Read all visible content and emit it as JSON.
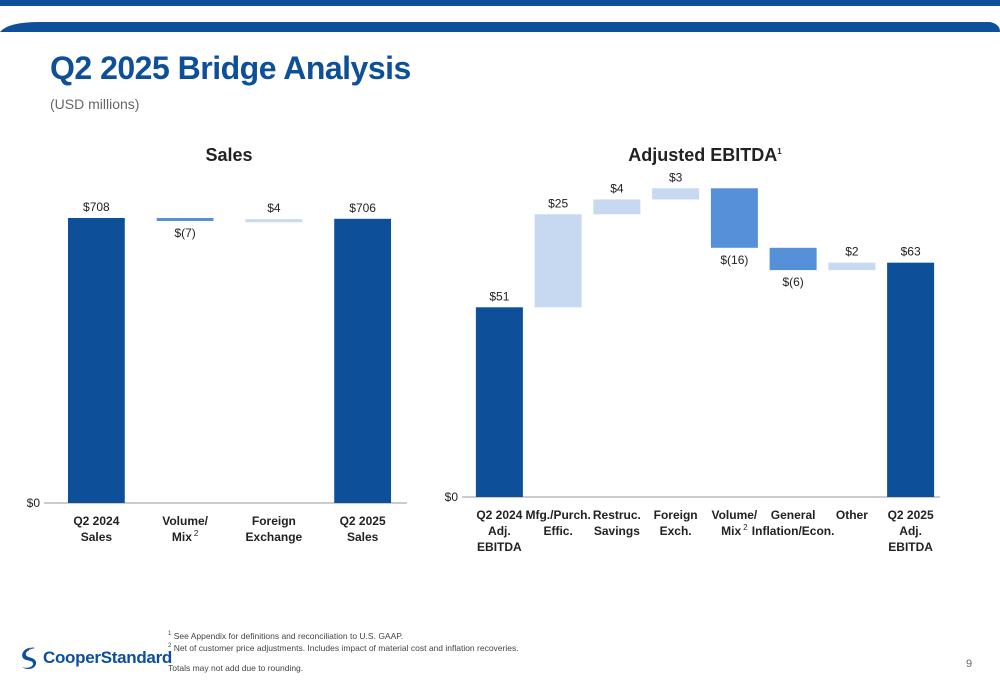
{
  "title": "Q2 2025 Bridge Analysis",
  "subtitle": "(USD millions)",
  "colors": {
    "dark_blue": "#0d4f99",
    "mid_blue": "#5590d8",
    "light_blue": "#c6d9f1",
    "title_blue": "#0d4f99"
  },
  "chart_data": [
    {
      "type": "bar",
      "subtype": "waterfall",
      "title": "Sales",
      "categories": [
        "Q2 2024 Sales",
        "Volume/ Mix 2",
        "Foreign Exchange",
        "Q2 2025 Sales"
      ],
      "tick_lines": [
        [
          "Q2 2024",
          "Sales"
        ],
        [
          "Volume/",
          "Mix"
        ],
        [
          "Foreign",
          "Exchange"
        ],
        [
          "Q2 2025",
          "Sales"
        ]
      ],
      "tick_sup": [
        "",
        "2",
        "",
        ""
      ],
      "values": [
        708,
        -7,
        4,
        706
      ],
      "kinds": [
        "total",
        "delta",
        "delta",
        "total"
      ],
      "value_labels": [
        "$708",
        "$(7)",
        "$4",
        "$706"
      ],
      "y_tick_label": "$0",
      "ylim": [
        0,
        708
      ]
    },
    {
      "type": "bar",
      "subtype": "waterfall",
      "title": "Adjusted EBITDA",
      "title_sup": "1",
      "categories": [
        "Q2 2024 Adj. EBITDA",
        "Mfg./Purch. Effic.",
        "Restruc. Savings",
        "Foreign Exch.",
        "Volume/ Mix 2",
        "General Inflation/Econ.",
        "Other",
        "Q2 2025 Adj. EBITDA"
      ],
      "tick_lines": [
        [
          "Q2 2024",
          "Adj.",
          "EBITDA"
        ],
        [
          "Mfg./Purch.",
          "Effic."
        ],
        [
          "Restruc.",
          "Savings"
        ],
        [
          "Foreign",
          "Exch."
        ],
        [
          "Volume/",
          "Mix"
        ],
        [
          "General",
          "Inflation/Econ."
        ],
        [
          "Other"
        ],
        [
          "Q2 2025",
          "Adj.",
          "EBITDA"
        ]
      ],
      "tick_sup": [
        "",
        "",
        "",
        "",
        "2",
        "",
        "",
        ""
      ],
      "values": [
        51,
        25,
        4,
        3,
        -16,
        -6,
        2,
        63
      ],
      "kinds": [
        "total",
        "delta",
        "delta",
        "delta",
        "delta",
        "delta",
        "delta",
        "total"
      ],
      "value_labels": [
        "$51",
        "$25",
        "$4",
        "$3",
        "$(16)",
        "$(6)",
        "$2",
        "$63"
      ],
      "y_tick_label": "$0",
      "ylim": [
        0,
        82
      ]
    }
  ],
  "footnotes": {
    "note1_mark": "1",
    "note1": "See Appendix for definitions and reconciliation to U.S. GAAP.",
    "note2_mark": "2",
    "note2": "Net of customer price adjustments. Includes impact of material cost and inflation recoveries.",
    "note3": "Totals may not add due to rounding."
  },
  "logo": {
    "name": "CooperStandard",
    "icon": "cooper-standard-swoosh-icon"
  },
  "page_number": "9"
}
